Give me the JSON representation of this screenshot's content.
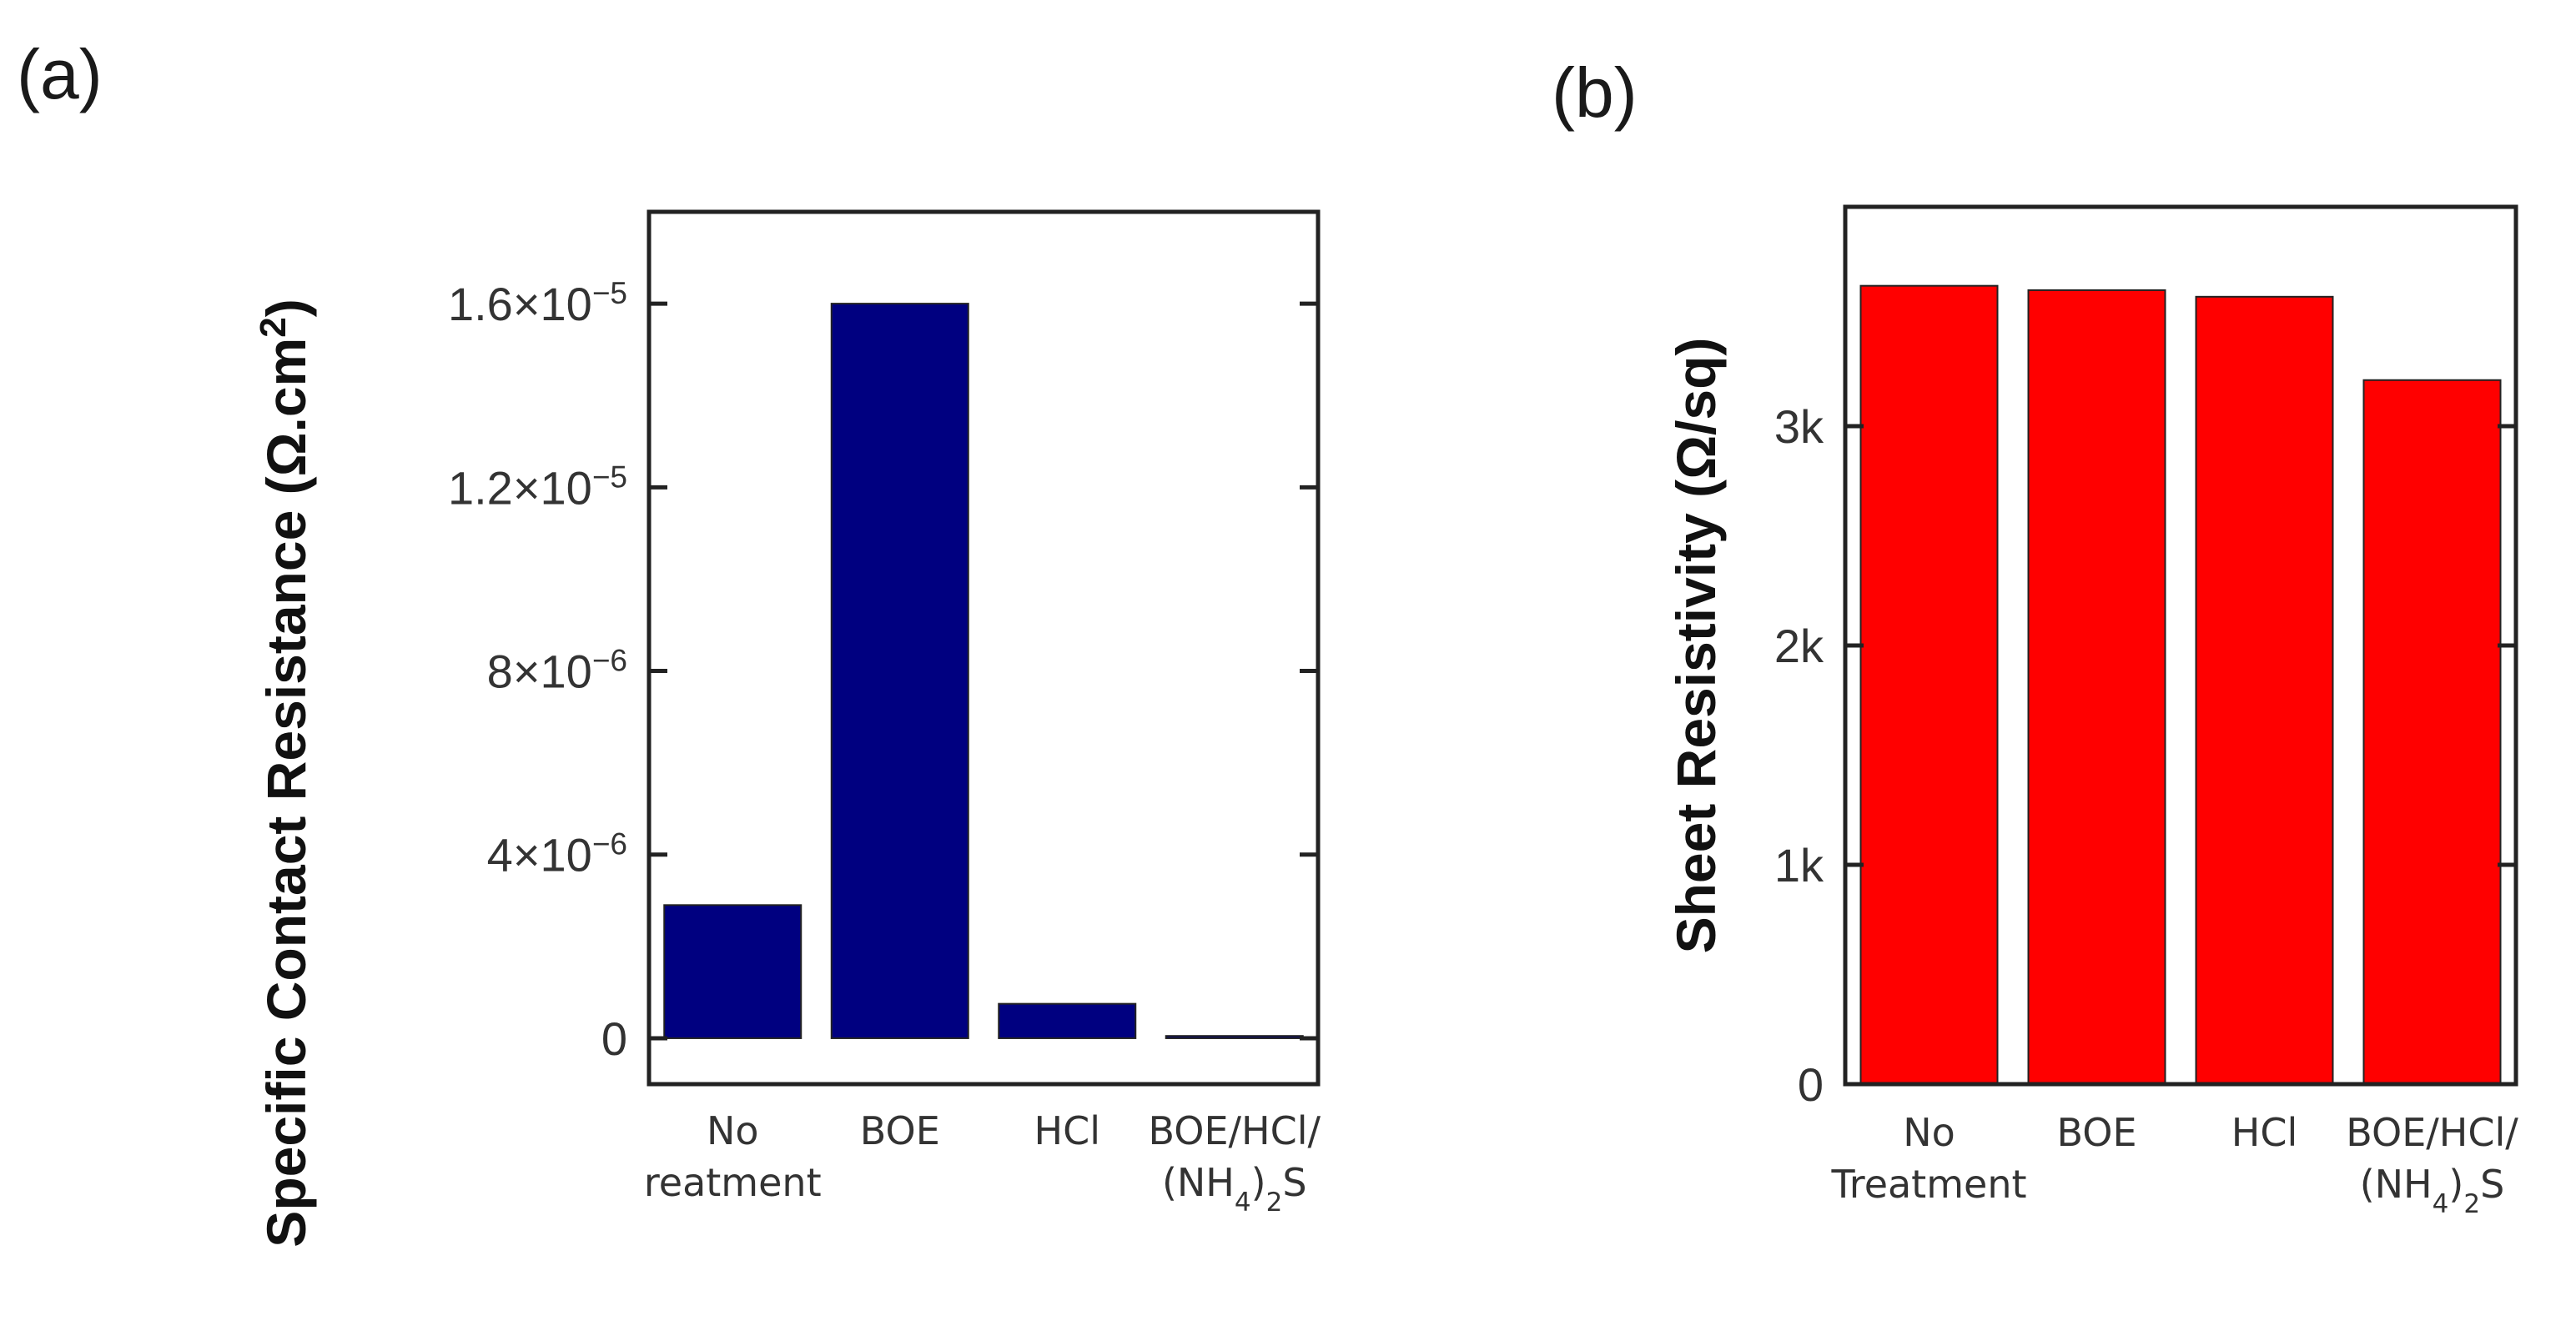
{
  "panels": {
    "a": {
      "label": "(a)"
    },
    "b": {
      "label": "(b)"
    }
  },
  "chart_data": [
    {
      "type": "bar",
      "title": "",
      "categories": [
        [
          "No",
          "reatment"
        ],
        [
          "BOE"
        ],
        [
          "HCl"
        ],
        [
          "BOE/HCl/",
          "(NH4)2S"
        ]
      ],
      "values": [
        2.9e-06,
        1.6e-05,
        7.5e-07,
        5e-08
      ],
      "ylabel": "Specific Contact Resistance (Ω.cm2)",
      "xlabel": "",
      "ylim": [
        -1e-06,
        1.8e-05
      ],
      "yticks": [
        {
          "value": 0,
          "label": "0"
        },
        {
          "value": 4e-06,
          "label": "4×10-6"
        },
        {
          "value": 8e-06,
          "label": "8×10-6"
        },
        {
          "value": 1.2e-05,
          "label": "1.2×10-5"
        },
        {
          "value": 1.6e-05,
          "label": "1.6×10-5"
        }
      ],
      "bar_color": "#000080",
      "grid": false
    },
    {
      "type": "bar",
      "title": "",
      "categories": [
        [
          "No",
          "Treatment"
        ],
        [
          "BOE"
        ],
        [
          "HCl"
        ],
        [
          "BOE/HCl/",
          "(NH4)2S"
        ]
      ],
      "values": [
        3640,
        3620,
        3590,
        3210
      ],
      "ylabel": "Sheet Resistivity (Ω/sq)",
      "xlabel": "",
      "ylim": [
        0,
        4000
      ],
      "yticks": [
        {
          "value": 0,
          "label": "0"
        },
        {
          "value": 1000,
          "label": "1k"
        },
        {
          "value": 2000,
          "label": "2k"
        },
        {
          "value": 3000,
          "label": "3k"
        }
      ],
      "bar_color": "#ff0000",
      "grid": false
    }
  ]
}
